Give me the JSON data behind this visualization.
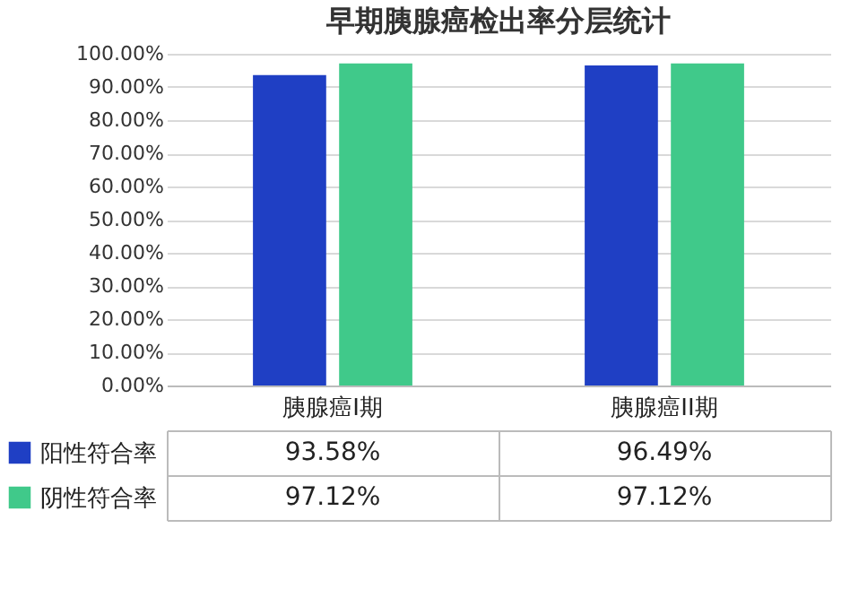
{
  "chart_data": {
    "type": "bar",
    "title": "早期胰腺癌检出率分层统计",
    "categories": [
      "胰腺癌I期",
      "胰腺癌II期"
    ],
    "series": [
      {
        "name": "阳性符合率",
        "color": "#1f3fc4",
        "values": [
          93.58,
          96.49
        ],
        "value_labels": [
          "93.58%",
          "96.49%"
        ]
      },
      {
        "name": "阴性符合率",
        "color": "#40c98a",
        "values": [
          97.12,
          97.12
        ],
        "value_labels": [
          "97.12%",
          "97.12%"
        ]
      }
    ],
    "ylim": [
      0,
      100
    ],
    "yticks": [
      {
        "value": 0,
        "label": "0.00%"
      },
      {
        "value": 10,
        "label": "10.00%"
      },
      {
        "value": 20,
        "label": "20.00%"
      },
      {
        "value": 30,
        "label": "30.00%"
      },
      {
        "value": 40,
        "label": "40.00%"
      },
      {
        "value": 50,
        "label": "50.00%"
      },
      {
        "value": 60,
        "label": "60.00%"
      },
      {
        "value": 70,
        "label": "70.00%"
      },
      {
        "value": 80,
        "label": "80.00%"
      },
      {
        "value": 90,
        "label": "90.00%"
      },
      {
        "value": 100,
        "label": "100.00%"
      }
    ],
    "grid": "y",
    "legend": "bottom"
  }
}
